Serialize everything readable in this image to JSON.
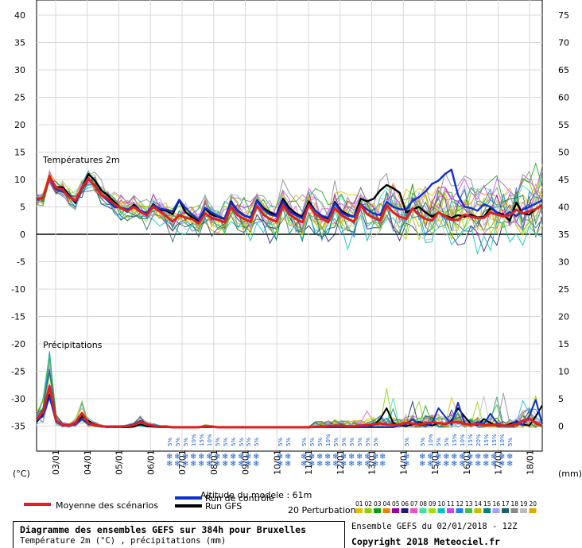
{
  "chart_data": {
    "type": "line",
    "left_axis_unit": "(°C)",
    "right_axis_unit": "(mm)",
    "left_ticks": [
      40,
      35,
      30,
      25,
      20,
      15,
      10,
      5,
      0,
      -5,
      -10,
      -15,
      -20,
      -25,
      -30,
      -35
    ],
    "right_ticks": [
      75,
      70,
      65,
      60,
      55,
      50,
      45,
      40,
      35,
      30,
      25,
      20,
      15,
      10,
      5,
      0
    ],
    "dates": [
      "03/01",
      "04/01",
      "05/01",
      "06/01",
      "07/01",
      "08/01",
      "09/01",
      "10/01",
      "11/01",
      "12/01",
      "13/01",
      "14/01",
      "15/01",
      "16/01",
      "17/01",
      "18/01"
    ],
    "temperature_panel_label": "Températures 2m",
    "precip_panel_label": "Précipitations",
    "temperature": {
      "unit": "°C",
      "x_step_hours": 6,
      "start_label": "02/01 12Z",
      "mean": [
        6.5,
        6.6,
        10.5,
        8.5,
        8.2,
        6.8,
        6.2,
        8.5,
        10.2,
        8.8,
        7.2,
        6.5,
        5.5,
        4.8,
        4.2,
        5.0,
        4.1,
        3.5,
        5.0,
        4.2,
        3.3,
        2.3,
        3.5,
        3.0,
        2.8,
        2.0,
        3.8,
        3.0,
        2.6,
        2.2,
        5.0,
        3.5,
        2.8,
        2.3,
        5.2,
        3.6,
        2.8,
        2.3,
        5.3,
        3.7,
        2.8,
        2.2,
        5.3,
        3.7,
        2.9,
        2.2,
        4.8,
        3.5,
        2.8,
        2.3,
        5.3,
        3.7,
        3.0,
        2.6,
        5.3,
        4.0,
        3.2,
        2.8,
        4.7,
        3.5,
        2.8,
        2.5,
        4.0,
        3.3,
        2.7,
        2.6,
        3.6,
        3.2,
        3.0,
        3.0,
        4.0,
        3.6,
        3.3,
        3.5,
        4.5,
        3.8,
        4.2,
        4.6,
        5.3
      ],
      "control": [
        6.3,
        6.7,
        10.4,
        8.2,
        7.8,
        7.0,
        5.9,
        8.3,
        10.0,
        9.0,
        7.2,
        6.1,
        5.0,
        4.9,
        4.5,
        5.1,
        4.3,
        3.9,
        5.3,
        4.7,
        4.5,
        4.2,
        6.3,
        4.8,
        3.6,
        2.7,
        4.8,
        4.0,
        3.3,
        2.9,
        5.8,
        4.2,
        3.4,
        3.1,
        6.1,
        4.5,
        3.6,
        3.3,
        6.0,
        4.2,
        3.5,
        2.9,
        5.5,
        4.3,
        3.4,
        3.0,
        5.7,
        4.0,
        3.4,
        3.2,
        5.5,
        4.5,
        3.8,
        3.5,
        5.9,
        5.0,
        4.6,
        4.5,
        6.1,
        6.8,
        7.8,
        9.2,
        9.8,
        11.0,
        11.8,
        7.2,
        5.0,
        4.8,
        4.3,
        5.5,
        5.0,
        4.0,
        3.2,
        4.1,
        3.3,
        4.5,
        5.0,
        5.6,
        6.2
      ],
      "gfs": [
        6.4,
        6.6,
        10.6,
        8.6,
        8.6,
        7.2,
        5.7,
        8.5,
        11.0,
        9.8,
        8.0,
        7.1,
        5.9,
        4.8,
        4.1,
        5.4,
        4.3,
        3.6,
        5.5,
        4.5,
        4.3,
        3.7,
        6.2,
        4.0,
        3.1,
        2.4,
        4.7,
        3.6,
        3.2,
        2.8,
        6.0,
        4.3,
        3.5,
        3.0,
        6.2,
        4.8,
        4.0,
        3.5,
        6.5,
        4.8,
        3.8,
        3.2,
        6.0,
        4.3,
        3.3,
        2.8,
        5.9,
        4.3,
        3.6,
        3.2,
        6.5,
        6.0,
        6.5,
        8.0,
        9.0,
        8.4,
        7.6,
        4.0,
        4.5,
        5.0,
        4.0,
        3.2,
        4.0,
        3.4,
        3.0,
        3.5,
        3.2,
        3.6,
        3.1,
        3.2,
        4.8,
        4.0,
        3.6,
        2.5,
        5.8,
        3.8,
        3.6,
        4.6,
        5.4
      ],
      "perturbation_spread": 2.4
    },
    "precipitation": {
      "unit": "mm",
      "x_step_hours": 6,
      "mean": [
        1.5,
        2.8,
        7.5,
        1.2,
        0.4,
        0.3,
        0.8,
        2.6,
        0.8,
        0.4,
        0.2,
        0.1,
        0.1,
        0.1,
        0.2,
        0.4,
        1.0,
        0.5,
        0.3,
        0.1,
        0.1,
        0.0,
        0.0,
        0.0,
        0.0,
        0.0,
        0.2,
        0.1,
        0.0,
        0.0,
        0.0,
        0.0,
        0.0,
        0.0,
        0.0,
        0.0,
        0.0,
        0.0,
        0.0,
        0.0,
        0.0,
        0.0,
        0.0,
        0.1,
        0.1,
        0.2,
        0.3,
        0.3,
        0.2,
        0.2,
        0.3,
        0.4,
        0.5,
        0.7,
        0.5,
        0.4,
        0.5,
        0.8,
        0.7,
        0.5,
        0.7,
        0.9,
        0.8,
        0.6,
        0.9,
        1.0,
        0.6,
        0.5,
        0.6,
        0.4,
        0.4,
        0.5,
        0.3,
        0.3,
        0.5,
        1.1,
        1.5,
        0.8,
        0.2
      ],
      "control": [
        1.2,
        2.0,
        5.5,
        1.0,
        0.3,
        0.2,
        0.5,
        1.5,
        0.6,
        0.3,
        0.1,
        0.0,
        0.0,
        0.0,
        0.3,
        0.5,
        1.2,
        0.6,
        0.2,
        0.1,
        0.0,
        0.0,
        0.0,
        0.0,
        0.0,
        0.0,
        0.0,
        0.0,
        0.0,
        0.0,
        0.0,
        0.0,
        0.0,
        0.0,
        0.0,
        0.0,
        0.0,
        0.0,
        0.0,
        0.0,
        0.0,
        0.0,
        0.0,
        0.0,
        0.0,
        0.0,
        0.0,
        0.0,
        0.0,
        0.0,
        0.0,
        0.0,
        0.0,
        0.0,
        0.0,
        0.0,
        0.3,
        0.6,
        1.5,
        0.5,
        0.2,
        0.8,
        3.5,
        2.0,
        0.5,
        4.5,
        0.8,
        0.3,
        1.0,
        0.6,
        2.5,
        0.8,
        0.3,
        0.2,
        1.2,
        0.4,
        2.0,
        5.0,
        0.6
      ],
      "gfs": [
        1.0,
        2.2,
        6.0,
        1.0,
        0.5,
        0.2,
        0.6,
        2.0,
        1.2,
        0.5,
        0.2,
        0.0,
        0.0,
        0.0,
        0.0,
        0.1,
        0.5,
        0.2,
        0.1,
        0.0,
        0.0,
        0.0,
        0.0,
        0.0,
        0.0,
        0.0,
        0.0,
        0.0,
        0.0,
        0.0,
        0.0,
        0.0,
        0.0,
        0.0,
        0.0,
        0.0,
        0.0,
        0.0,
        0.0,
        0.0,
        0.0,
        0.0,
        0.0,
        0.0,
        0.0,
        0.0,
        0.0,
        0.0,
        0.0,
        0.0,
        0.0,
        0.0,
        0.4,
        1.5,
        3.5,
        0.8,
        0.3,
        0.2,
        0.5,
        1.0,
        0.6,
        0.3,
        0.8,
        0.5,
        1.2,
        3.5,
        2.0,
        0.6,
        0.4,
        1.5,
        0.8,
        0.3,
        0.2,
        0.6,
        1.0,
        0.5,
        0.3,
        2.0,
        4.0
      ]
    },
    "altitude_text": "Altitude du modele : 61m",
    "snow_label": "❄",
    "snow_groups": [
      {
        "percents": [
          "5%",
          "5%",
          "5%",
          "10%",
          "15%",
          "10%",
          "5%",
          "5%",
          "5%",
          "5%"
        ]
      },
      {
        "percents": [
          "5%",
          "5%"
        ]
      },
      {
        "percents": [
          "5%",
          "5%"
        ]
      },
      {
        "percents": [
          "5%",
          "5%",
          "5%",
          "10%",
          "5%",
          "5%",
          "5%",
          "5%",
          "5%",
          "5%"
        ]
      },
      {
        "percents": [
          ""
        ]
      },
      {
        "percents": [
          "5%"
        ]
      },
      {
        "percents": [
          "5%",
          "10%",
          "5%",
          "5%",
          "15%",
          "10%",
          "15%",
          "20%",
          "15%",
          "15%",
          "10%",
          "5%"
        ]
      }
    ],
    "legend": {
      "mean": "Moyenne des scénarios",
      "control": "Run de contrôle",
      "gfs": "Run GFS",
      "perturbations": "20 Perturbations",
      "perturbation_ids": [
        "01",
        "02",
        "03",
        "04",
        "05",
        "06",
        "07",
        "08",
        "09",
        "10",
        "11",
        "12",
        "13",
        "14",
        "15",
        "16",
        "17",
        "18",
        "19",
        "20"
      ],
      "colors": {
        "mean": "#e02020",
        "control": "#1030d0",
        "gfs": "#000000",
        "perturbations": [
          "#e0c000",
          "#90d000",
          "#10a010",
          "#f08000",
          "#a000a0",
          "#1a1a80",
          "#f050c0",
          "#40e0a0",
          "#a0e000",
          "#00c0c0",
          "#d040f0",
          "#2080f0",
          "#40c040",
          "#c0c000",
          "#008080",
          "#a0a0ff",
          "#206060",
          "#888888",
          "#bbbbbb",
          "#ddaa00"
        ]
      }
    }
  },
  "footer": {
    "title": "Diagramme des ensembles GEFS sur 384h pour Bruxelles",
    "subtitle": "Température 2m (°C) , précipitations (mm)",
    "run": "Ensemble GEFS du 02/01/2018 - 12Z",
    "copyright": "Copyright 2018 Meteociel.fr"
  }
}
